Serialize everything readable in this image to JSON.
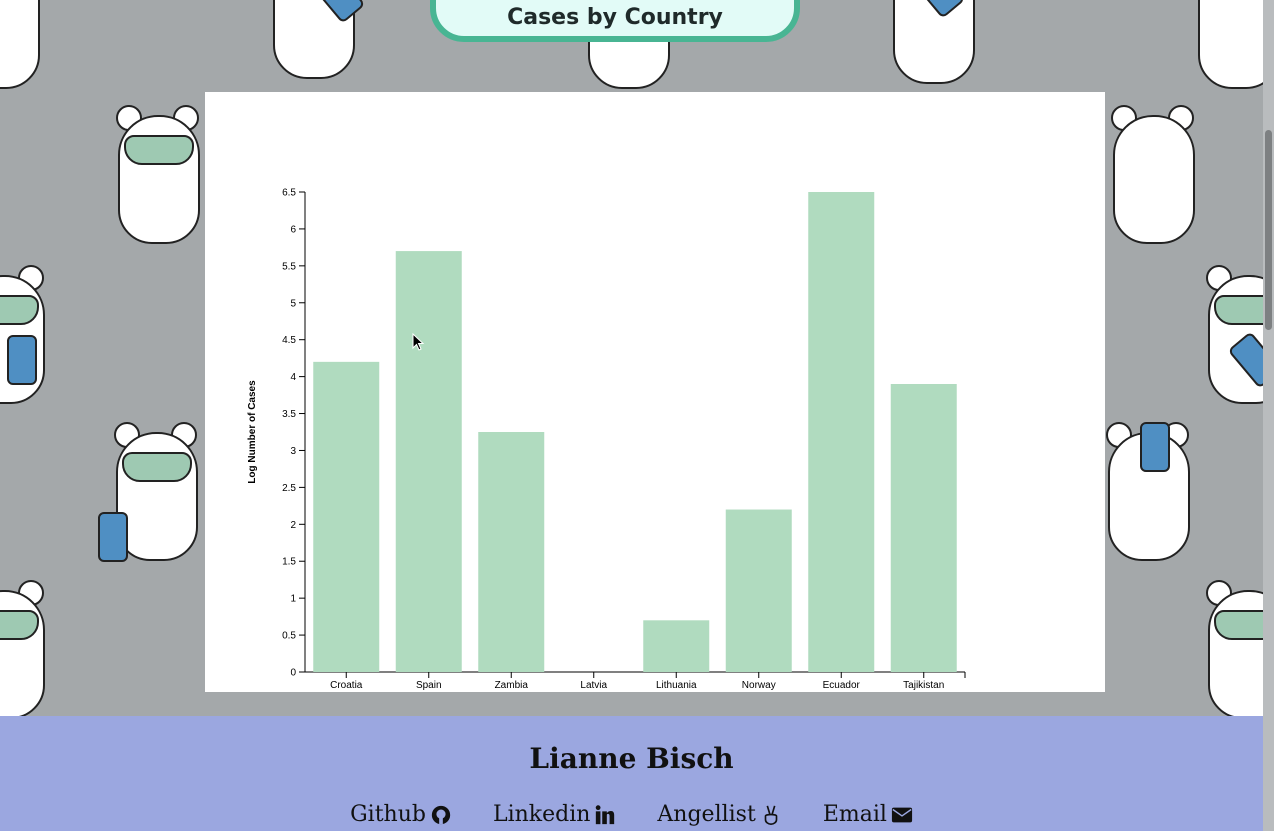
{
  "header": {
    "title_line": "Cases by Country"
  },
  "chart_data": {
    "type": "bar",
    "categories": [
      "Croatia",
      "Spain",
      "Zambia",
      "Latvia",
      "Lithuania",
      "Norway",
      "Ecuador",
      "Tajikistan"
    ],
    "values": [
      4.2,
      5.7,
      3.25,
      0,
      0.7,
      2.2,
      6.5,
      3.9
    ],
    "ylabel": "Log Number of Cases",
    "ylim": [
      0,
      6.5
    ],
    "yticks": [
      0,
      0.5,
      1,
      1.5,
      2,
      2.5,
      3,
      3.5,
      4,
      4.5,
      5,
      5.5,
      6,
      6.5
    ],
    "bar_color": "#b0dbbf"
  },
  "footer": {
    "name": "Lianne Bisch",
    "links": [
      {
        "label": "Github",
        "icon": "github-icon"
      },
      {
        "label": "Linkedin",
        "icon": "linkedin-icon"
      },
      {
        "label": "Angellist",
        "icon": "peace-hand-icon"
      },
      {
        "label": "Email",
        "icon": "envelope-icon"
      }
    ]
  },
  "colors": {
    "banner_border": "#48b593",
    "footer_bg": "#9ba7e0",
    "page_bg": "#a4a8aa"
  }
}
